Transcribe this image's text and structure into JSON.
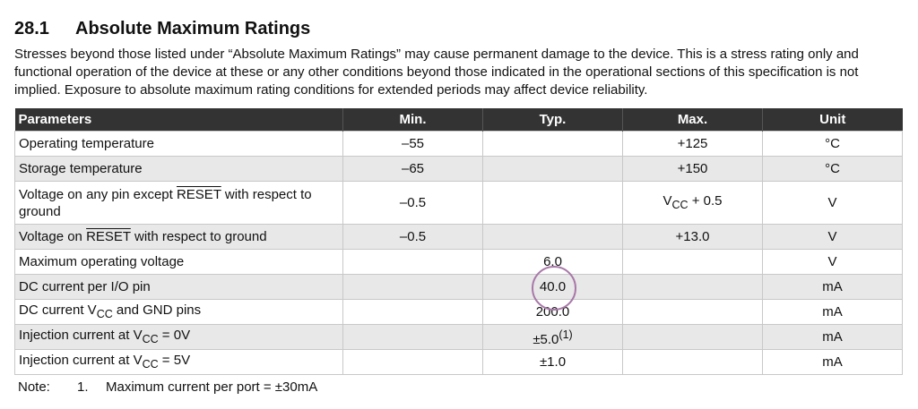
{
  "section": {
    "number": "28.1",
    "title": "Absolute Maximum Ratings",
    "intro": "Stresses beyond those listed under “Absolute Maximum Ratings” may cause permanent damage to the device. This is a stress rating only and functional operation of the device at these or any other conditions beyond those indicated in the operational sections of this specification is not implied. Exposure to absolute maximum rating conditions for extended periods may affect device reliability."
  },
  "table": {
    "headers": [
      "Parameters",
      "Min.",
      "Typ.",
      "Max.",
      "Unit"
    ],
    "rows": [
      {
        "param": "Operating temperature",
        "min": "–55",
        "typ": "",
        "max": "+125",
        "unit": "°C"
      },
      {
        "param": "Storage temperature",
        "min": "–65",
        "typ": "",
        "max": "+150",
        "unit": "°C"
      },
      {
        "param_pre": "Voltage on any pin except ",
        "param_ovl": "RESET",
        "param_post": " with respect to ground",
        "min": "–0.5",
        "typ": "",
        "max_base": "V",
        "max_sub": "CC",
        "max_post": " + 0.5",
        "unit": "V"
      },
      {
        "param_pre": "Voltage on ",
        "param_ovl": "RESET",
        "param_post": " with respect to ground",
        "min": "–0.5",
        "typ": "",
        "max": "+13.0",
        "unit": "V"
      },
      {
        "param": "Maximum operating voltage",
        "min": "",
        "typ": "6.0",
        "max": "",
        "unit": "V"
      },
      {
        "param": "DC current per I/O pin",
        "min": "",
        "typ": "40.0",
        "max": "",
        "unit": "mA"
      },
      {
        "param_pre": "DC current V",
        "param_sub": "CC",
        "param_post": " and GND pins",
        "min": "",
        "typ": "200.0",
        "max": "",
        "unit": "mA"
      },
      {
        "param_pre": "Injection current at V",
        "param_sub": "CC",
        "param_post": " = 0V",
        "min": "",
        "typ": "±5.0",
        "typ_sup": "(1)",
        "max": "",
        "unit": "mA"
      },
      {
        "param_pre": "Injection current at V",
        "param_sub": "CC",
        "param_post": " = 5V",
        "min": "",
        "typ": "±1.0",
        "max": "",
        "unit": "mA"
      }
    ]
  },
  "note": {
    "label": "Note:",
    "index": "1.",
    "text": "Maximum current per port = ±30mA"
  }
}
